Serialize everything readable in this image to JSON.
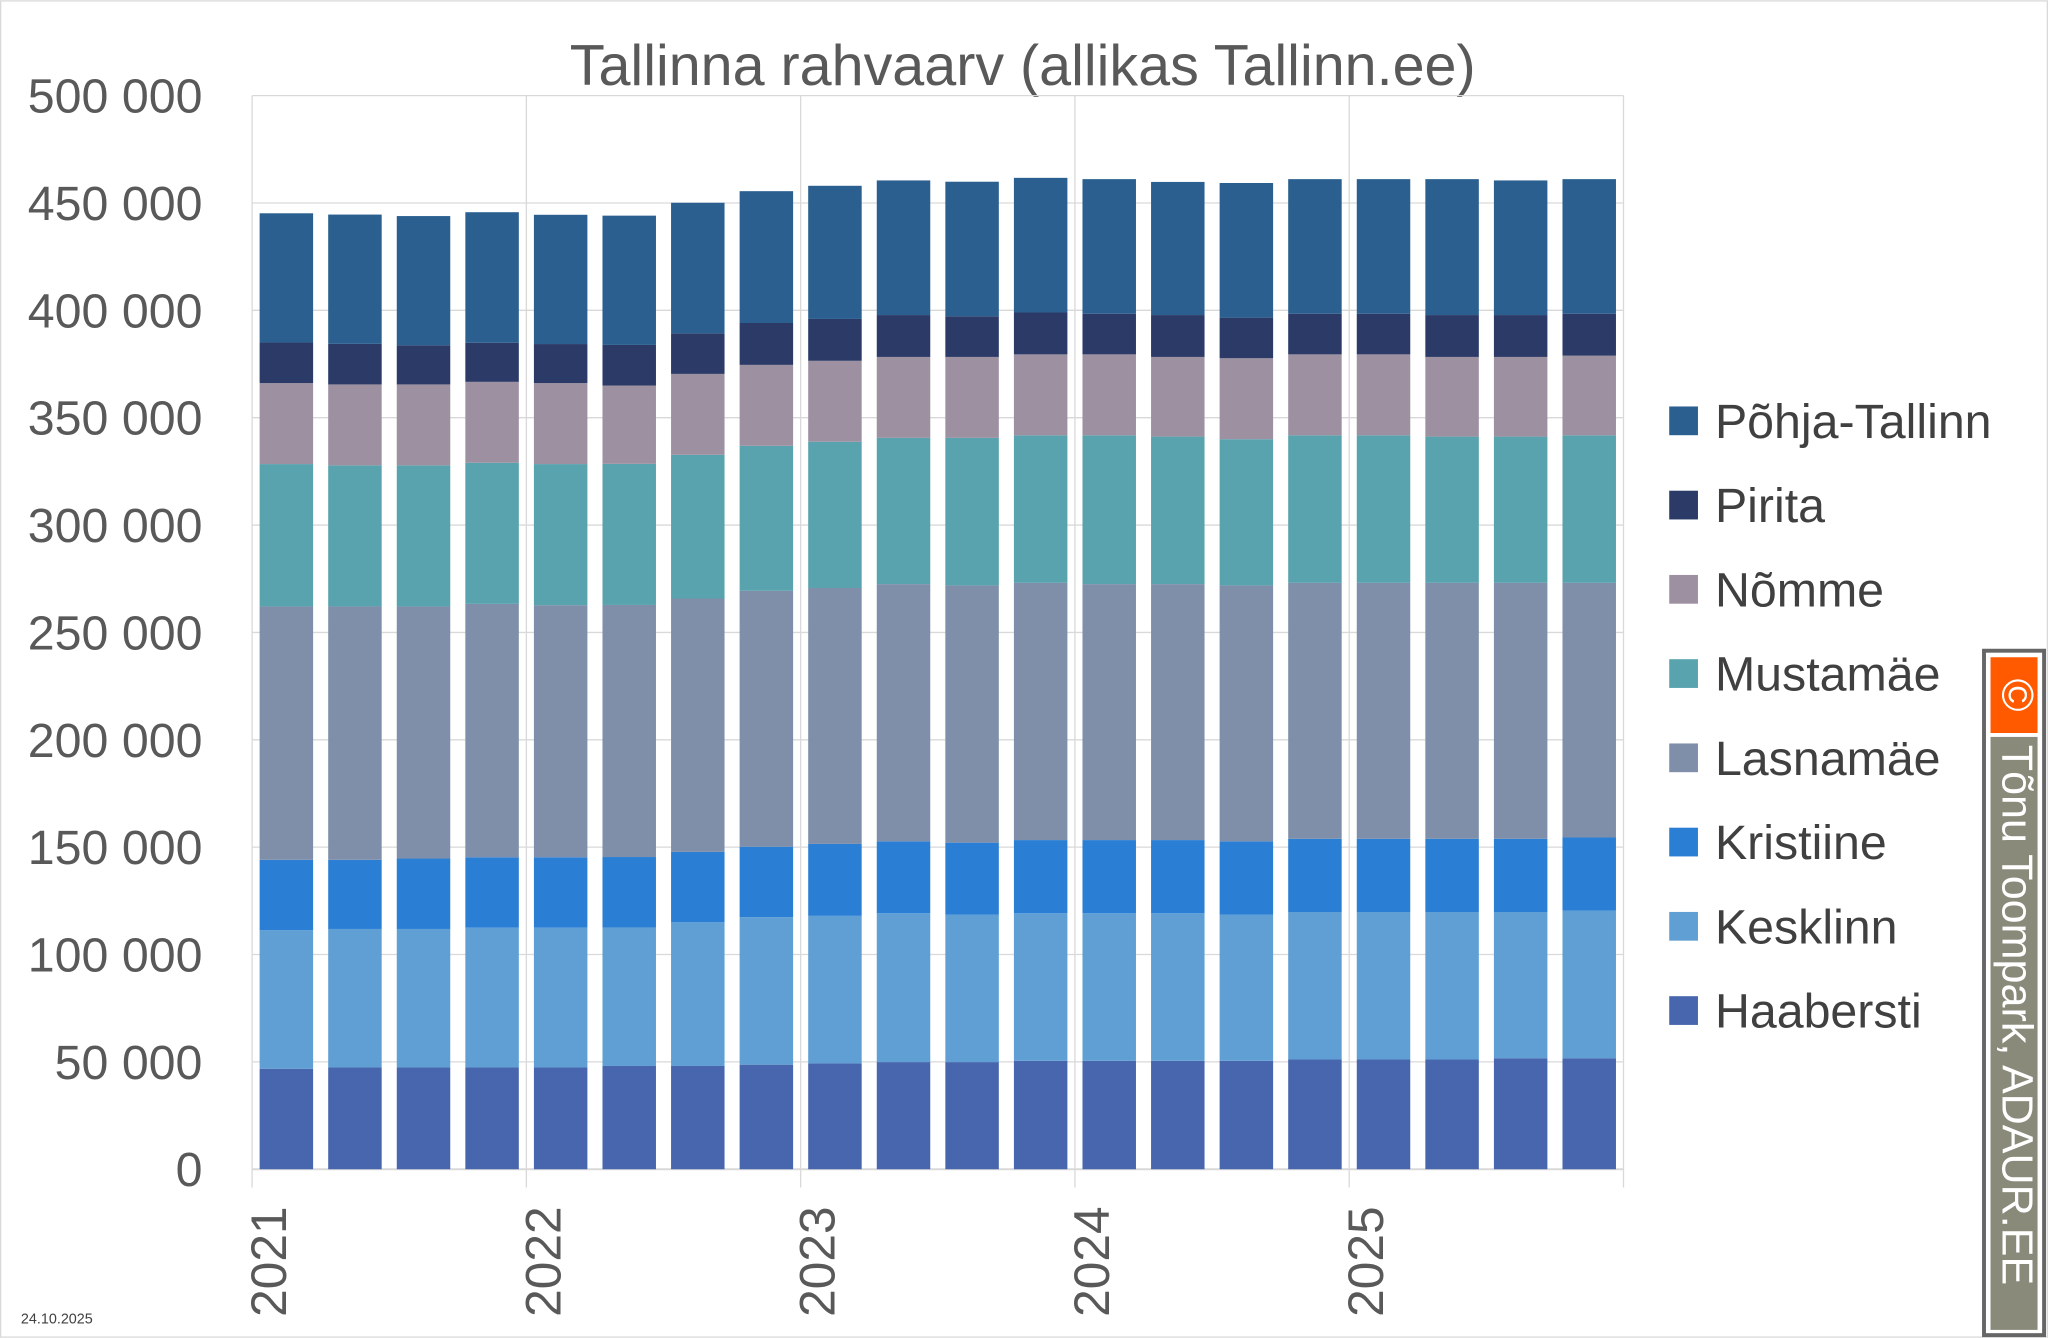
{
  "chart_data": {
    "type": "bar",
    "stacked": true,
    "title": "Tallinna rahvaarv (allikas Tallinn.ee)",
    "xlabel": "",
    "ylabel": "",
    "ylim": [
      0,
      500000
    ],
    "yticks": [
      "0",
      "50 000",
      "100 000",
      "150 000",
      "200 000",
      "250 000",
      "300 000",
      "350 000",
      "400 000",
      "450 000",
      "500 000"
    ],
    "xtick_labels": [
      "2021",
      "2022",
      "2023",
      "2024",
      "2025"
    ],
    "categories": [
      "2021 Q1",
      "2021 Q2",
      "2021 Q3",
      "2021 Q4",
      "2022 Q1",
      "2022 Q2",
      "2022 Q3",
      "2022 Q4",
      "2023 Q1",
      "2023 Q2",
      "2023 Q3",
      "2023 Q4",
      "2024 Q1",
      "2024 Q2",
      "2024 Q3",
      "2024 Q4",
      "2025 Q1",
      "2025 Q2",
      "2025 Q3",
      "2025 Q4"
    ],
    "grid": true,
    "legend_position": "right",
    "series": [
      {
        "name": "Haabersti",
        "color": "#4866ae",
        "values": [
          46800,
          47400,
          47400,
          47400,
          47400,
          48100,
          48100,
          48700,
          49300,
          49900,
          49900,
          50500,
          50500,
          50500,
          50500,
          51100,
          51100,
          51100,
          51700,
          51700
        ]
      },
      {
        "name": "Kesklinn",
        "color": "#5f9fd4",
        "values": [
          64500,
          64500,
          64500,
          65100,
          65100,
          64500,
          66900,
          68700,
          68700,
          69300,
          68700,
          68700,
          68700,
          68700,
          68100,
          68700,
          68700,
          68700,
          68100,
          68700
        ]
      },
      {
        "name": "Kristiine",
        "color": "#2a7fd5",
        "values": [
          32800,
          32200,
          32800,
          32800,
          32800,
          32800,
          32800,
          32800,
          33500,
          33500,
          33500,
          34100,
          34100,
          34100,
          34100,
          34100,
          34100,
          34100,
          34100,
          34100
        ]
      },
      {
        "name": "Lasnamäe",
        "color": "#7f8faa",
        "values": [
          118000,
          118000,
          117400,
          118000,
          117400,
          117400,
          118000,
          119200,
          119200,
          119800,
          119800,
          119800,
          119200,
          119200,
          119200,
          119200,
          119200,
          119200,
          119200,
          118600
        ]
      },
      {
        "name": "Mustamäe",
        "color": "#58a3ad",
        "values": [
          66300,
          65700,
          65700,
          65700,
          65700,
          65700,
          66900,
          67500,
          68100,
          68100,
          68700,
          68700,
          69300,
          68700,
          68100,
          68700,
          68700,
          68100,
          68100,
          68700
        ]
      },
      {
        "name": "Nõmme",
        "color": "#9d91a1",
        "values": [
          37700,
          37700,
          37700,
          37700,
          37700,
          36500,
          37700,
          37700,
          37700,
          37700,
          37700,
          37700,
          37700,
          37100,
          37700,
          37700,
          37700,
          37100,
          37100,
          37100
        ]
      },
      {
        "name": "Pirita",
        "color": "#2b3a66",
        "values": [
          18900,
          18900,
          18200,
          18200,
          18200,
          18900,
          18900,
          19500,
          19500,
          19500,
          18900,
          19500,
          18900,
          19500,
          18900,
          18900,
          18900,
          19500,
          19500,
          19500
        ]
      },
      {
        "name": "Põhja-Tallinn",
        "color": "#2a5f8f",
        "values": [
          60200,
          60200,
          60200,
          60800,
          60200,
          60200,
          60800,
          61400,
          62000,
          62700,
          62700,
          62700,
          62700,
          62000,
          62700,
          62700,
          62700,
          63300,
          62700,
          62700
        ]
      }
    ]
  },
  "watermark": {
    "symbol": "©",
    "text": "Tõnu Toompark, ADAUR.EE"
  },
  "date": "24.10.2025"
}
